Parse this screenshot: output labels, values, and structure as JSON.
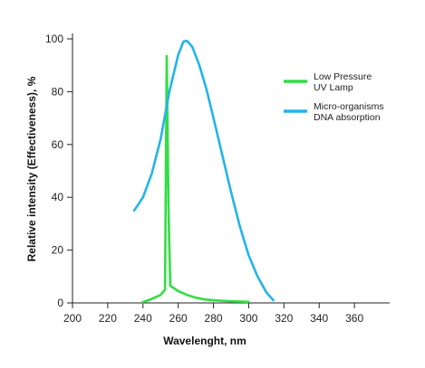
{
  "chart_data": {
    "type": "line",
    "xlabel": "Wavelenght, nm",
    "ylabel": "Relative intensity (Effectiveness), %",
    "xlim": [
      200,
      380
    ],
    "ylim": [
      0,
      100
    ],
    "xticks": [
      200,
      220,
      240,
      260,
      280,
      300,
      320,
      340,
      360
    ],
    "yticks": [
      0,
      20,
      40,
      60,
      80,
      100
    ],
    "legend_position": "top-right",
    "grid": false,
    "series": [
      {
        "name": "Low Pressure UV Lamp",
        "legend_lines": [
          "Low Pressure",
          "UV Lamp"
        ],
        "color": "#33dd44",
        "points": [
          [
            240,
            0.3
          ],
          [
            245,
            1.5
          ],
          [
            250,
            3
          ],
          [
            252.5,
            5
          ],
          [
            253.5,
            93.5
          ],
          [
            254.5,
            35
          ],
          [
            255.5,
            6.5
          ],
          [
            260,
            4.5
          ],
          [
            265,
            3
          ],
          [
            270,
            2
          ],
          [
            275,
            1.3
          ],
          [
            280,
            1
          ],
          [
            290,
            0.6
          ],
          [
            300,
            0.4
          ]
        ]
      },
      {
        "name": "Micro-organisms DNA absorption",
        "legend_lines": [
          "Micro-organisms",
          "DNA absorption"
        ],
        "color": "#22b4e8",
        "points": [
          [
            235,
            35
          ],
          [
            240,
            40
          ],
          [
            245,
            49
          ],
          [
            250,
            62
          ],
          [
            255,
            80
          ],
          [
            260,
            94
          ],
          [
            263,
            99
          ],
          [
            265,
            99.2
          ],
          [
            268,
            97
          ],
          [
            272,
            90
          ],
          [
            276,
            81
          ],
          [
            280,
            70
          ],
          [
            285,
            56
          ],
          [
            290,
            42
          ],
          [
            295,
            29
          ],
          [
            300,
            18
          ],
          [
            305,
            10
          ],
          [
            310,
            4
          ],
          [
            314,
            1
          ]
        ]
      }
    ]
  }
}
